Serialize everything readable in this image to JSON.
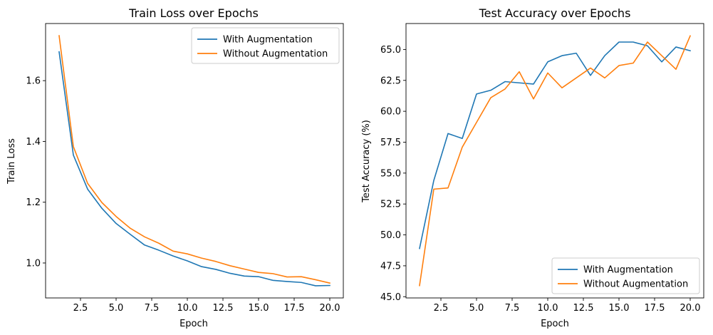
{
  "colors": {
    "with_aug": "#1f77b4",
    "without_aug": "#ff7f0e"
  },
  "chart_data": [
    {
      "type": "line",
      "title": "Train Loss over Epochs",
      "xlabel": "Epoch",
      "ylabel": "Train Loss",
      "xlim": [
        0.05,
        20.95
      ],
      "ylim": [
        0.885,
        1.788
      ],
      "xticks": [
        2.5,
        5.0,
        7.5,
        10.0,
        12.5,
        15.0,
        17.5,
        20.0
      ],
      "xtick_labels": [
        "2.5",
        "5.0",
        "7.5",
        "10.0",
        "12.5",
        "15.0",
        "17.5",
        "20.0"
      ],
      "yticks": [
        1.0,
        1.2,
        1.4,
        1.6
      ],
      "ytick_labels": [
        "1.0",
        "1.2",
        "1.4",
        "1.6"
      ],
      "legend": "top-right",
      "grid": false,
      "x": [
        1,
        2,
        3,
        4,
        5,
        6,
        7,
        8,
        9,
        10,
        11,
        12,
        13,
        14,
        15,
        16,
        17,
        18,
        19,
        20
      ],
      "series": [
        {
          "name": "With Augmentation",
          "color": "#1f77b4",
          "values": [
            1.695,
            1.355,
            1.243,
            1.18,
            1.13,
            1.094,
            1.059,
            1.042,
            1.023,
            1.007,
            0.988,
            0.979,
            0.966,
            0.957,
            0.955,
            0.943,
            0.939,
            0.936,
            0.925,
            0.926
          ]
        },
        {
          "name": "Without Augmentation",
          "color": "#ff7f0e",
          "values": [
            1.748,
            1.383,
            1.262,
            1.199,
            1.153,
            1.114,
            1.086,
            1.065,
            1.039,
            1.03,
            1.016,
            1.005,
            0.991,
            0.98,
            0.969,
            0.965,
            0.954,
            0.955,
            0.945,
            0.934
          ]
        }
      ]
    },
    {
      "type": "line",
      "title": "Test Accuracy over Epochs",
      "xlabel": "Epoch",
      "ylabel": "Test Accuracy (%)",
      "xlim": [
        0.05,
        20.95
      ],
      "ylim": [
        44.9,
        67.1
      ],
      "xticks": [
        2.5,
        5.0,
        7.5,
        10.0,
        12.5,
        15.0,
        17.5,
        20.0
      ],
      "xtick_labels": [
        "2.5",
        "5.0",
        "7.5",
        "10.0",
        "12.5",
        "15.0",
        "17.5",
        "20.0"
      ],
      "yticks": [
        45.0,
        47.5,
        50.0,
        52.5,
        55.0,
        57.5,
        60.0,
        62.5,
        65.0
      ],
      "ytick_labels": [
        "45.0",
        "47.5",
        "50.0",
        "52.5",
        "55.0",
        "57.5",
        "60.0",
        "62.5",
        "65.0"
      ],
      "legend": "bottom-right",
      "grid": false,
      "x": [
        1,
        2,
        3,
        4,
        5,
        6,
        7,
        8,
        9,
        10,
        11,
        12,
        13,
        14,
        15,
        16,
        17,
        18,
        19,
        20
      ],
      "series": [
        {
          "name": "With Augmentation",
          "color": "#1f77b4",
          "values": [
            48.9,
            54.4,
            58.2,
            57.8,
            61.4,
            61.7,
            62.4,
            62.3,
            62.2,
            64.0,
            64.5,
            64.7,
            62.9,
            64.5,
            65.6,
            65.6,
            65.3,
            64.0,
            65.2,
            64.9
          ]
        },
        {
          "name": "Without Augmentation",
          "color": "#ff7f0e",
          "values": [
            45.9,
            53.7,
            53.8,
            57.1,
            59.1,
            61.1,
            61.8,
            63.2,
            61.0,
            63.1,
            61.9,
            62.7,
            63.5,
            62.7,
            63.7,
            63.9,
            65.6,
            64.5,
            63.4,
            66.1
          ]
        }
      ]
    }
  ]
}
